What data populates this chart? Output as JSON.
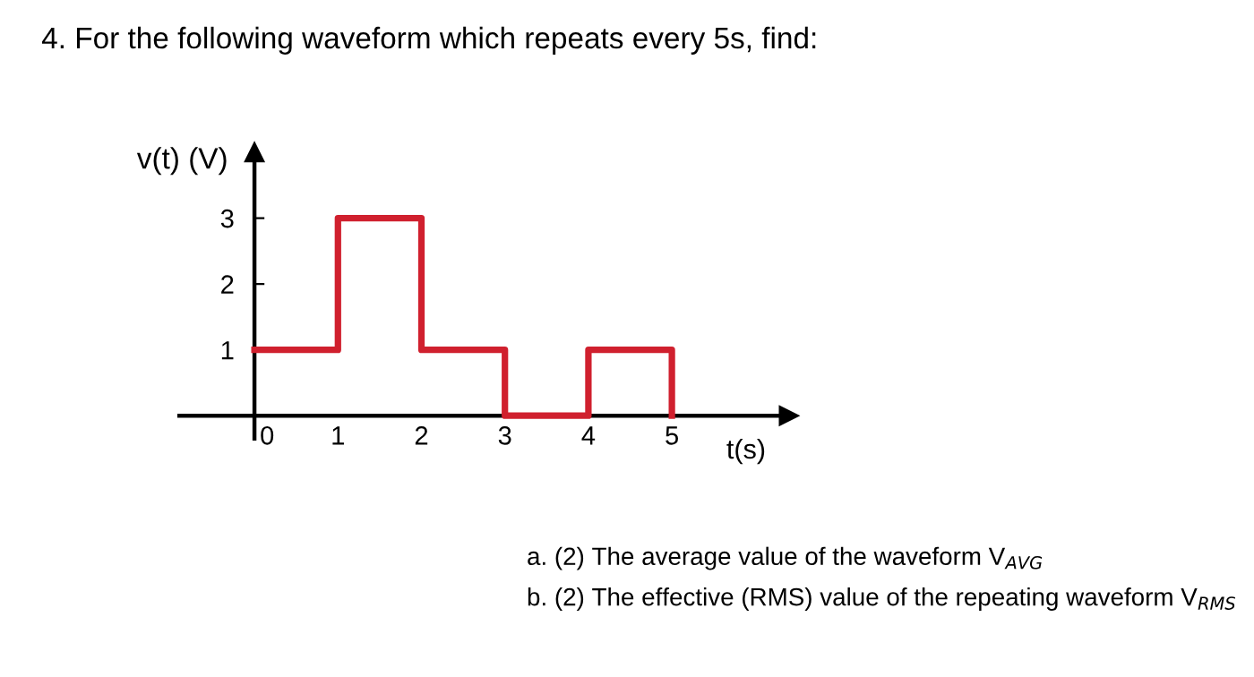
{
  "chart_data": {
    "type": "step",
    "title": "4. For the following waveform which repeats every 5s, find:",
    "xlabel": "t(s)",
    "ylabel": "v(t) (V)",
    "x": [
      0,
      1,
      2,
      3,
      4,
      5
    ],
    "values": [
      1,
      3,
      1,
      0,
      1,
      0
    ],
    "color": "#d0202e",
    "xlim": [
      -0.9,
      6.4
    ],
    "ylim": [
      -0.35,
      4.0
    ],
    "xticks": [
      0,
      1,
      2,
      3,
      4,
      5
    ],
    "yticks": [
      1,
      2,
      3
    ],
    "grid": false,
    "legend": false,
    "annotations": [
      "a. (2) The average value of the waveform V$_{AVG}$",
      "b. (2) The effective (RMS) value of the repeating waveform V$_{RMS}$"
    ]
  }
}
